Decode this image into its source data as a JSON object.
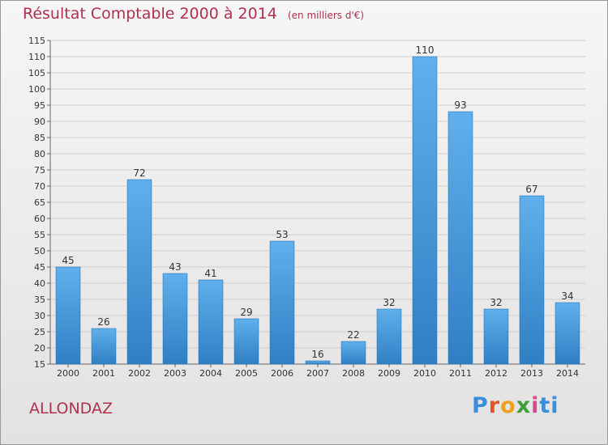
{
  "chart_data": {
    "type": "bar",
    "title": "Résultat Comptable 2000 à 2014",
    "subtitle": "(en milliers d'€)",
    "categories": [
      "2000",
      "2001",
      "2002",
      "2003",
      "2004",
      "2005",
      "2006",
      "2007",
      "2008",
      "2009",
      "2010",
      "2011",
      "2012",
      "2013",
      "2014"
    ],
    "values": [
      45,
      26,
      72,
      43,
      41,
      29,
      53,
      16,
      22,
      32,
      110,
      93,
      32,
      67,
      34
    ],
    "ylim": [
      15,
      115
    ],
    "yticks": [
      15,
      20,
      25,
      30,
      35,
      40,
      45,
      50,
      55,
      60,
      65,
      70,
      75,
      80,
      85,
      90,
      95,
      100,
      105,
      110,
      115
    ],
    "xlabel": "",
    "ylabel": "",
    "grid": true,
    "bar_color": "#4a9fe0"
  },
  "place_name": "ALLONDAZ",
  "logo": {
    "letters": [
      "P",
      "r",
      "o",
      "x",
      "i",
      "ti"
    ]
  }
}
